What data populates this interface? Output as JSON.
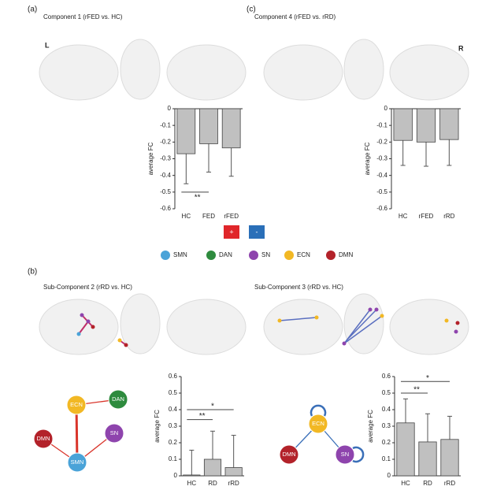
{
  "panels": [
    "(a)",
    "(c)",
    "(b)"
  ],
  "sides": [
    "L",
    "R"
  ],
  "sign_legend": [
    {
      "label": "+",
      "color": "#e0262a"
    },
    {
      "label": "-",
      "color": "#2a6fb8"
    }
  ],
  "network_legend": [
    {
      "name": "SMN",
      "color": "#4aa3d8"
    },
    {
      "name": "DAN",
      "color": "#2e8b3e"
    },
    {
      "name": "SN",
      "color": "#8e44ad"
    },
    {
      "name": "ECN",
      "color": "#f2b824"
    },
    {
      "name": "DMN",
      "color": "#b3222a"
    }
  ],
  "networks": [
    {
      "nodes": [
        "ECN",
        "DAN",
        "DMN",
        "SN",
        "SMN"
      ],
      "edges": [
        [
          "ECN",
          "DAN"
        ],
        [
          "ECN",
          "SMN"
        ],
        [
          "DMN",
          "SMN"
        ],
        [
          "SN",
          "SMN"
        ]
      ],
      "self_loops": [],
      "edge_color": "#d9352b"
    },
    {
      "nodes": [
        "ECN",
        "DMN",
        "SN"
      ],
      "edges": [
        [
          "ECN",
          "DMN"
        ],
        [
          "ECN",
          "SN"
        ]
      ],
      "self_loops": [
        "ECN",
        "SN"
      ],
      "edge_color": "#3a6fb8"
    }
  ],
  "chart_data": [
    {
      "type": "bar",
      "title": "Component 1 (rFED vs. HC)",
      "ylabel": "average FC",
      "categories": [
        "HC",
        "FED",
        "rFED"
      ],
      "values": [
        -0.27,
        -0.21,
        -0.235
      ],
      "errors": [
        0.18,
        0.17,
        0.17
      ],
      "color": "#c0c0c0",
      "ylim": [
        -0.6,
        0
      ],
      "yticks": [
        0,
        -0.1,
        -0.2,
        -0.3,
        -0.4,
        -0.5,
        -0.6
      ],
      "annotations": [
        {
          "label": "**",
          "from": 0,
          "to": 1
        }
      ]
    },
    {
      "type": "bar",
      "title": "Component 4 (rFED vs. rRD)",
      "ylabel": "average FC",
      "categories": [
        "HC",
        "rFED",
        "rRD"
      ],
      "values": [
        -0.19,
        -0.2,
        -0.185
      ],
      "errors": [
        0.15,
        0.145,
        0.155
      ],
      "color": "#c0c0c0",
      "ylim": [
        -0.6,
        0
      ],
      "yticks": [
        0,
        -0.1,
        -0.2,
        -0.3,
        -0.4,
        -0.5,
        -0.6
      ],
      "annotations": []
    },
    {
      "type": "bar",
      "title": "Sub-Component 2 (rRD vs. HC)",
      "ylabel": "average FC",
      "categories": [
        "HC",
        "RD",
        "rRD"
      ],
      "values": [
        0.005,
        0.1,
        0.05
      ],
      "errors": [
        0.15,
        0.17,
        0.195
      ],
      "color": "#c0c0c0",
      "ylim": [
        0,
        0.6
      ],
      "yticks": [
        0,
        0.1,
        0.2,
        0.3,
        0.4,
        0.5,
        0.6
      ],
      "annotations": [
        {
          "label": "**",
          "from": 0,
          "to": 1
        },
        {
          "label": "*",
          "from": 0,
          "to": 2
        }
      ]
    },
    {
      "type": "bar",
      "title": "Sub-Component 3 (rRD vs. HC)",
      "ylabel": "average FC",
      "categories": [
        "HC",
        "RD",
        "rRD"
      ],
      "values": [
        0.32,
        0.205,
        0.22
      ],
      "errors": [
        0.145,
        0.17,
        0.14
      ],
      "color": "#c0c0c0",
      "ylim": [
        0,
        0.6
      ],
      "yticks": [
        0,
        0.1,
        0.2,
        0.3,
        0.4,
        0.5,
        0.6
      ],
      "annotations": [
        {
          "label": "**",
          "from": 0,
          "to": 1
        },
        {
          "label": "*",
          "from": 0,
          "to": 2
        }
      ]
    }
  ]
}
